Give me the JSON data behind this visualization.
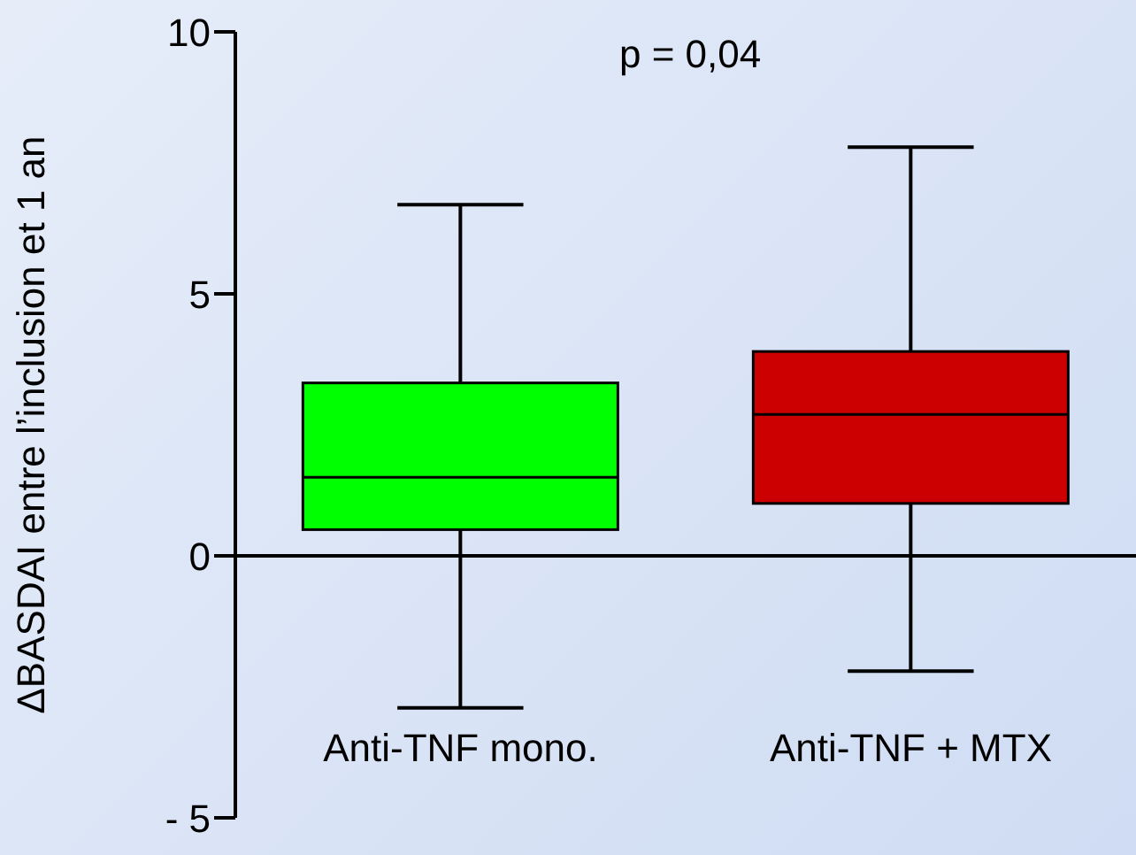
{
  "chart_data": {
    "type": "box",
    "ylabel": "ΔBASDAI entre l’inclusion et 1 an",
    "annotations": [
      "p = 0,04"
    ],
    "categories": [
      "Anti-TNF mono.",
      "Anti-TNF + MTX"
    ],
    "colors": [
      "#00ff00",
      "#cc0000"
    ],
    "boxes": [
      {
        "low": -2.9,
        "q1": 0.5,
        "median": 1.5,
        "q3": 3.3,
        "high": 6.7
      },
      {
        "low": -2.2,
        "q1": 1.0,
        "median": 2.7,
        "q3": 3.9,
        "high": 7.8
      }
    ],
    "ylim": [
      -5,
      10
    ],
    "yticks": [
      10,
      5,
      0,
      {
        "value": -5,
        "label": "- 5"
      }
    ],
    "ref_lines": [
      {
        "axis": "y",
        "value": 0,
        "color": "#000000"
      }
    ],
    "grid": false,
    "legend": false
  }
}
